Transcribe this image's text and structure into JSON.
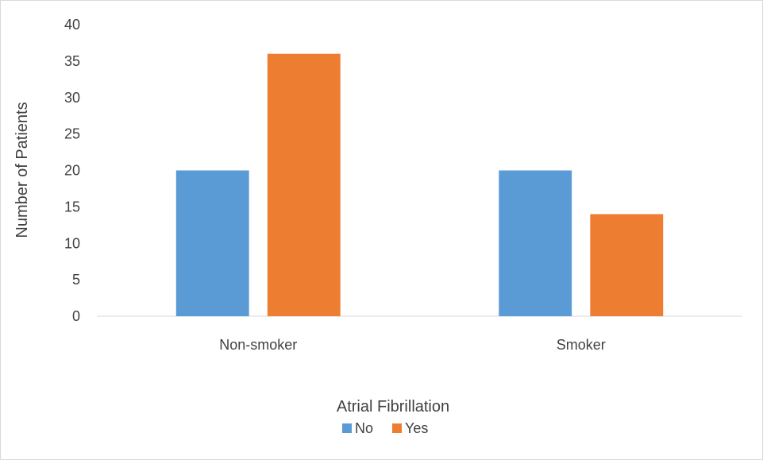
{
  "chart_data": {
    "type": "bar",
    "categories": [
      "Non-smoker",
      "Smoker"
    ],
    "series": [
      {
        "name": "No",
        "values": [
          20,
          20
        ],
        "color": "#5b9bd5"
      },
      {
        "name": "Yes",
        "values": [
          36,
          14
        ],
        "color": "#ed7d31"
      }
    ],
    "title": "",
    "xlabel": "",
    "ylabel": "Number of Patients",
    "ylim": [
      0,
      40
    ],
    "yticks": [
      0,
      5,
      10,
      15,
      20,
      25,
      30,
      35,
      40
    ],
    "grid": false,
    "legend": {
      "title": "Atrial Fibrillation",
      "position": "bottom"
    }
  }
}
